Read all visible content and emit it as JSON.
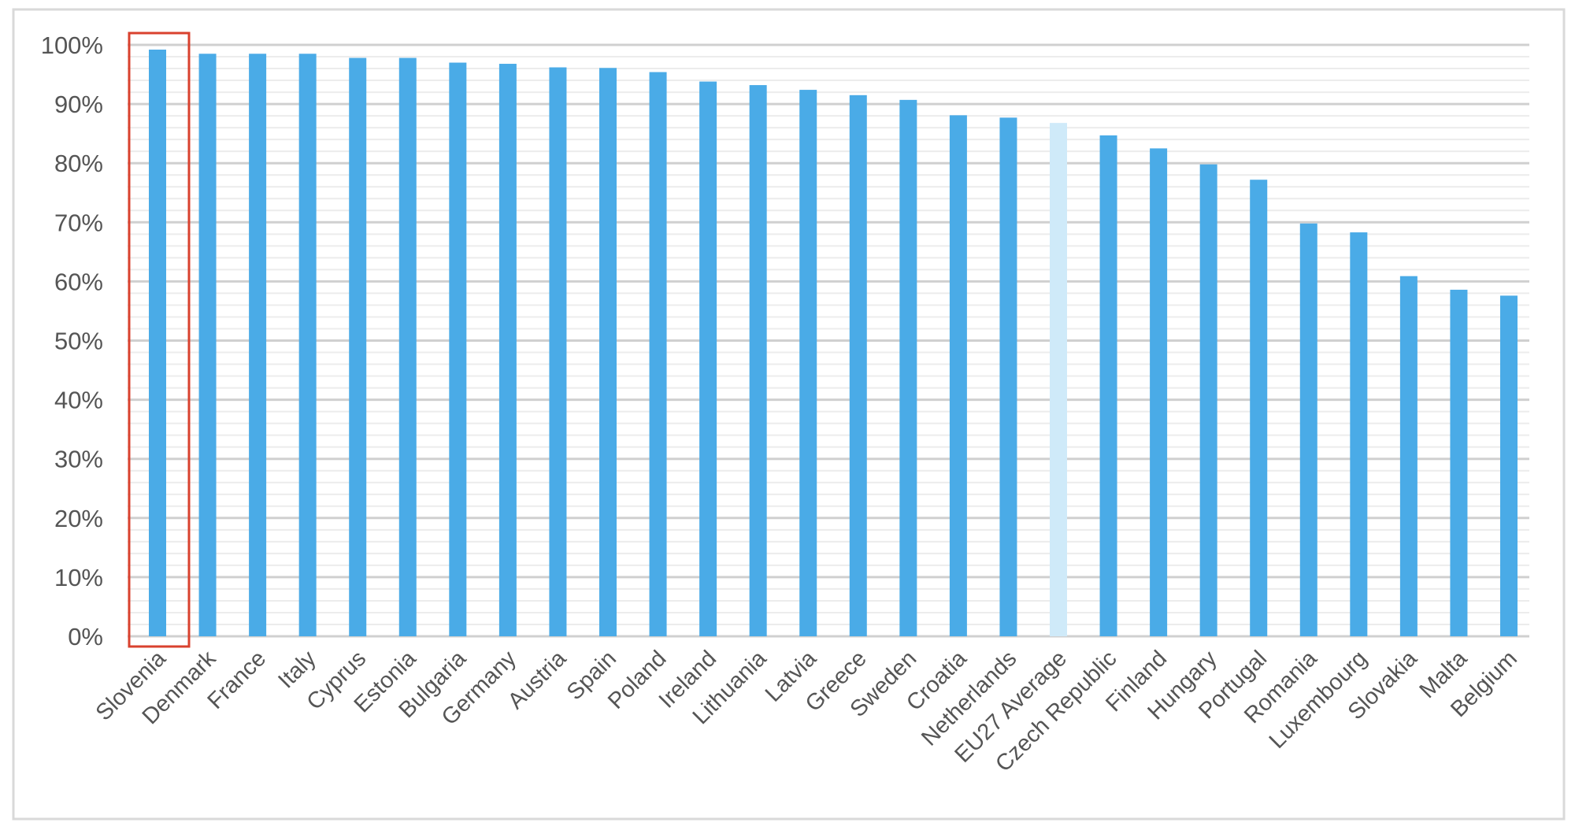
{
  "chart_data": {
    "type": "bar",
    "categories": [
      "Slovenia",
      "Denmark",
      "France",
      "Italy",
      "Cyprus",
      "Estonia",
      "Bulgaria",
      "Germany",
      "Austria",
      "Spain",
      "Poland",
      "Ireland",
      "Lithuania",
      "Latvia",
      "Greece",
      "Sweden",
      "Croatia",
      "Netherlands",
      "EU27 Average",
      "Czech Republic",
      "Finland",
      "Hungary",
      "Portugal",
      "Romania",
      "Luxembourg",
      "Slovakia",
      "Malta",
      "Belgium"
    ],
    "values": [
      99.2,
      98.5,
      98.5,
      98.5,
      97.8,
      97.8,
      97.0,
      96.8,
      96.2,
      96.1,
      95.4,
      93.8,
      93.2,
      92.4,
      91.5,
      90.7,
      88.1,
      87.7,
      86.8,
      84.7,
      82.5,
      79.8,
      77.2,
      69.8,
      68.3,
      60.9,
      58.6,
      57.6
    ],
    "highlight_category": "EU27 Average",
    "outlined_category": "Slovenia",
    "yticks": [
      "0%",
      "10%",
      "20%",
      "30%",
      "40%",
      "50%",
      "60%",
      "70%",
      "80%",
      "90%",
      "100%"
    ],
    "ylim": [
      0,
      100
    ],
    "grid": true,
    "title": "",
    "xlabel": "",
    "ylabel": ""
  },
  "colors": {
    "bar": "#4aabe7",
    "highlight_bar": "#cfeaf9",
    "outline": "#d9412e",
    "major_grid": "#d0d0d0",
    "minor_grid": "#ececec",
    "axis_text": "#555555",
    "frame": "#d9d9d9"
  }
}
